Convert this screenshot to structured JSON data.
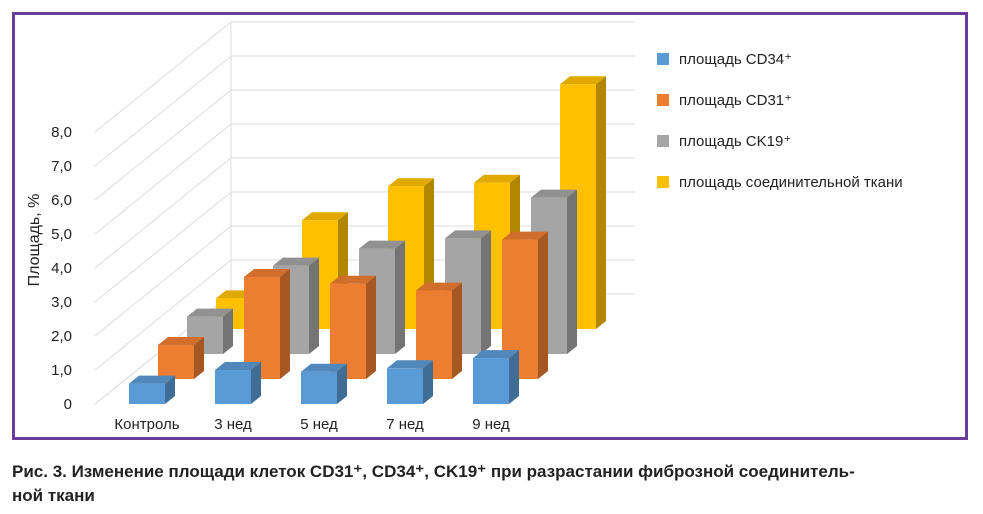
{
  "chart_data": {
    "type": "bar",
    "style": "3d-clustered-depth",
    "ylabel": "Площадь, %",
    "ylim": [
      0,
      8
    ],
    "ytick_labels": [
      "0",
      "1,0",
      "2,0",
      "3,0",
      "4,0",
      "5,0",
      "6,0",
      "7,0",
      "8,0"
    ],
    "grid": true,
    "legend_position": "right",
    "categories": [
      "Контроль",
      "3 нед",
      "5 нед",
      "7 нед",
      "9 нед"
    ],
    "series": [
      {
        "name": "площадь CD34⁺",
        "color": "#5b9bd5",
        "values": [
          0.6,
          1.0,
          0.95,
          1.05,
          1.35
        ]
      },
      {
        "name": "площадь CD31⁺",
        "color": "#ed7d31",
        "values": [
          1.0,
          3.0,
          2.8,
          2.6,
          4.1
        ]
      },
      {
        "name": "площадь CK19⁺",
        "color": "#a5a5a5",
        "values": [
          1.1,
          2.6,
          3.1,
          3.4,
          4.6
        ]
      },
      {
        "name": "площадь соединительной ткани",
        "color": "#ffc000",
        "values": [
          0.9,
          3.2,
          4.2,
          4.3,
          7.2
        ]
      }
    ]
  },
  "caption": {
    "line1": "Рис. 3. Изменение площади клеток CD31⁺, CD34⁺, CK19⁺ при разрастании фиброзной соединитель-",
    "line2": "ной ткани"
  }
}
